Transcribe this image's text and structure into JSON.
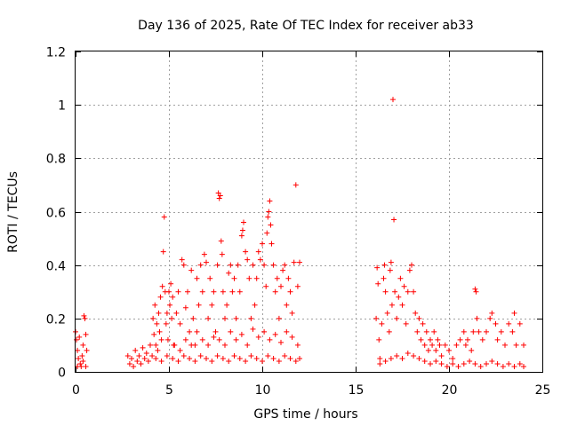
{
  "chart_data": {
    "type": "scatter",
    "title": "Day 136 of 2025, Rate Of TEC Index for receiver ab33",
    "xlabel": "GPS time / hours",
    "ylabel": "ROTI / TECUs",
    "xlim": [
      0,
      25
    ],
    "ylim": [
      0,
      1.2
    ],
    "xticks": [
      0,
      5,
      10,
      15,
      20,
      25
    ],
    "yticks": [
      0,
      0.2,
      0.4,
      0.6,
      0.8,
      1,
      1.2
    ],
    "xtick_labels": [
      "0",
      "5",
      "10",
      "15",
      "20",
      "25"
    ],
    "ytick_labels": [
      "0",
      "0.2",
      "0.4",
      "0.6",
      "0.8",
      "1",
      "1.2"
    ],
    "grid": true,
    "marker": "+",
    "color": "#ff0000",
    "series": [
      {
        "name": "ROTI",
        "points": [
          [
            0.0,
            0.15
          ],
          [
            0.05,
            0.12
          ],
          [
            0.1,
            0.08
          ],
          [
            0.15,
            0.05
          ],
          [
            0.2,
            0.13
          ],
          [
            0.25,
            0.03
          ],
          [
            0.3,
            0.02
          ],
          [
            0.35,
            0.06
          ],
          [
            0.4,
            0.1
          ],
          [
            0.45,
            0.21
          ],
          [
            0.5,
            0.2
          ],
          [
            0.55,
            0.14
          ],
          [
            0.6,
            0.08
          ],
          [
            0.1,
            0.02
          ],
          [
            0.4,
            0.04
          ],
          [
            0.55,
            0.02
          ],
          [
            2.8,
            0.06
          ],
          [
            2.9,
            0.03
          ],
          [
            3.0,
            0.05
          ],
          [
            3.1,
            0.02
          ],
          [
            3.2,
            0.08
          ],
          [
            3.3,
            0.04
          ],
          [
            3.4,
            0.06
          ],
          [
            3.5,
            0.03
          ],
          [
            3.6,
            0.09
          ],
          [
            3.7,
            0.05
          ],
          [
            3.8,
            0.07
          ],
          [
            3.9,
            0.04
          ],
          [
            4.0,
            0.1
          ],
          [
            4.1,
            0.06
          ],
          [
            4.15,
            0.2
          ],
          [
            4.2,
            0.14
          ],
          [
            4.25,
            0.25
          ],
          [
            4.3,
            0.1
          ],
          [
            4.35,
            0.18
          ],
          [
            4.4,
            0.08
          ],
          [
            4.45,
            0.22
          ],
          [
            4.5,
            0.15
          ],
          [
            4.55,
            0.28
          ],
          [
            4.6,
            0.12
          ],
          [
            4.65,
            0.32
          ],
          [
            4.7,
            0.45
          ],
          [
            4.75,
            0.58
          ],
          [
            4.8,
            0.3
          ],
          [
            4.85,
            0.18
          ],
          [
            4.9,
            0.22
          ],
          [
            4.95,
            0.12
          ],
          [
            5.0,
            0.3
          ],
          [
            5.05,
            0.25
          ],
          [
            5.1,
            0.33
          ],
          [
            5.15,
            0.2
          ],
          [
            5.2,
            0.28
          ],
          [
            5.25,
            0.1
          ],
          [
            5.4,
            0.22
          ],
          [
            5.5,
            0.3
          ],
          [
            5.6,
            0.18
          ],
          [
            5.7,
            0.42
          ],
          [
            5.8,
            0.4
          ],
          [
            5.9,
            0.24
          ],
          [
            6.0,
            0.3
          ],
          [
            6.1,
            0.15
          ],
          [
            6.2,
            0.38
          ],
          [
            6.3,
            0.2
          ],
          [
            6.4,
            0.1
          ],
          [
            6.5,
            0.35
          ],
          [
            6.6,
            0.25
          ],
          [
            6.7,
            0.4
          ],
          [
            6.8,
            0.3
          ],
          [
            6.9,
            0.44
          ],
          [
            7.0,
            0.41
          ],
          [
            7.1,
            0.2
          ],
          [
            7.2,
            0.35
          ],
          [
            7.3,
            0.25
          ],
          [
            7.4,
            0.3
          ],
          [
            7.5,
            0.15
          ],
          [
            7.6,
            0.4
          ],
          [
            7.65,
            0.67
          ],
          [
            7.7,
            0.65
          ],
          [
            7.75,
            0.66
          ],
          [
            7.8,
            0.49
          ],
          [
            7.85,
            0.44
          ],
          [
            7.9,
            0.3
          ],
          [
            8.0,
            0.2
          ],
          [
            8.1,
            0.25
          ],
          [
            8.2,
            0.37
          ],
          [
            8.3,
            0.4
          ],
          [
            8.4,
            0.3
          ],
          [
            8.5,
            0.35
          ],
          [
            8.6,
            0.2
          ],
          [
            8.7,
            0.4
          ],
          [
            8.8,
            0.3
          ],
          [
            8.9,
            0.51
          ],
          [
            8.95,
            0.53
          ],
          [
            9.0,
            0.56
          ],
          [
            9.1,
            0.45
          ],
          [
            9.2,
            0.42
          ],
          [
            9.3,
            0.35
          ],
          [
            9.4,
            0.2
          ],
          [
            9.5,
            0.4
          ],
          [
            9.6,
            0.25
          ],
          [
            9.7,
            0.35
          ],
          [
            9.8,
            0.45
          ],
          [
            9.9,
            0.42
          ],
          [
            10.0,
            0.48
          ],
          [
            10.1,
            0.4
          ],
          [
            10.2,
            0.32
          ],
          [
            10.25,
            0.52
          ],
          [
            10.3,
            0.58
          ],
          [
            10.35,
            0.6
          ],
          [
            10.4,
            0.64
          ],
          [
            10.45,
            0.55
          ],
          [
            10.5,
            0.48
          ],
          [
            10.6,
            0.4
          ],
          [
            10.7,
            0.3
          ],
          [
            10.8,
            0.35
          ],
          [
            10.9,
            0.2
          ],
          [
            11.0,
            0.32
          ],
          [
            11.1,
            0.38
          ],
          [
            11.2,
            0.4
          ],
          [
            11.3,
            0.25
          ],
          [
            11.4,
            0.35
          ],
          [
            11.5,
            0.3
          ],
          [
            11.6,
            0.22
          ],
          [
            11.7,
            0.41
          ],
          [
            11.8,
            0.7
          ],
          [
            11.9,
            0.32
          ],
          [
            12.0,
            0.41
          ],
          [
            5.3,
            0.1
          ],
          [
            5.6,
            0.08
          ],
          [
            5.9,
            0.12
          ],
          [
            6.2,
            0.1
          ],
          [
            6.5,
            0.15
          ],
          [
            6.8,
            0.12
          ],
          [
            7.1,
            0.1
          ],
          [
            7.4,
            0.13
          ],
          [
            7.7,
            0.12
          ],
          [
            8.0,
            0.1
          ],
          [
            8.3,
            0.15
          ],
          [
            8.6,
            0.12
          ],
          [
            8.9,
            0.14
          ],
          [
            9.2,
            0.1
          ],
          [
            9.5,
            0.16
          ],
          [
            9.8,
            0.13
          ],
          [
            10.1,
            0.15
          ],
          [
            10.4,
            0.12
          ],
          [
            10.7,
            0.14
          ],
          [
            11.0,
            0.11
          ],
          [
            11.3,
            0.15
          ],
          [
            11.6,
            0.13
          ],
          [
            11.9,
            0.1
          ],
          [
            4.3,
            0.05
          ],
          [
            4.6,
            0.04
          ],
          [
            4.9,
            0.06
          ],
          [
            5.2,
            0.05
          ],
          [
            5.5,
            0.04
          ],
          [
            5.8,
            0.06
          ],
          [
            6.1,
            0.05
          ],
          [
            6.4,
            0.04
          ],
          [
            6.7,
            0.06
          ],
          [
            7.0,
            0.05
          ],
          [
            7.3,
            0.04
          ],
          [
            7.6,
            0.06
          ],
          [
            7.9,
            0.05
          ],
          [
            8.2,
            0.04
          ],
          [
            8.5,
            0.06
          ],
          [
            8.8,
            0.05
          ],
          [
            9.1,
            0.04
          ],
          [
            9.4,
            0.06
          ],
          [
            9.7,
            0.05
          ],
          [
            10.0,
            0.04
          ],
          [
            10.3,
            0.06
          ],
          [
            10.6,
            0.05
          ],
          [
            10.9,
            0.04
          ],
          [
            11.2,
            0.06
          ],
          [
            11.5,
            0.05
          ],
          [
            11.8,
            0.04
          ],
          [
            12.0,
            0.05
          ],
          [
            16.1,
            0.2
          ],
          [
            16.15,
            0.39
          ],
          [
            16.2,
            0.33
          ],
          [
            16.25,
            0.12
          ],
          [
            16.3,
            0.05
          ],
          [
            16.4,
            0.18
          ],
          [
            16.5,
            0.35
          ],
          [
            16.55,
            0.4
          ],
          [
            16.6,
            0.3
          ],
          [
            16.7,
            0.22
          ],
          [
            16.8,
            0.15
          ],
          [
            16.85,
            0.38
          ],
          [
            16.9,
            0.41
          ],
          [
            16.95,
            0.25
          ],
          [
            17.0,
            1.02
          ],
          [
            17.05,
            0.57
          ],
          [
            17.1,
            0.3
          ],
          [
            17.2,
            0.2
          ],
          [
            17.3,
            0.28
          ],
          [
            17.4,
            0.35
          ],
          [
            17.5,
            0.25
          ],
          [
            17.6,
            0.32
          ],
          [
            17.7,
            0.18
          ],
          [
            17.8,
            0.3
          ],
          [
            17.9,
            0.38
          ],
          [
            18.0,
            0.4
          ],
          [
            18.1,
            0.3
          ],
          [
            18.2,
            0.22
          ],
          [
            18.3,
            0.15
          ],
          [
            18.4,
            0.2
          ],
          [
            18.5,
            0.12
          ],
          [
            18.6,
            0.18
          ],
          [
            18.7,
            0.1
          ],
          [
            18.8,
            0.15
          ],
          [
            18.9,
            0.08
          ],
          [
            19.0,
            0.12
          ],
          [
            19.1,
            0.1
          ],
          [
            19.2,
            0.15
          ],
          [
            19.3,
            0.08
          ],
          [
            19.4,
            0.12
          ],
          [
            19.5,
            0.1
          ],
          [
            19.6,
            0.06
          ],
          [
            19.8,
            0.1
          ],
          [
            20.0,
            0.08
          ],
          [
            20.2,
            0.05
          ],
          [
            20.4,
            0.1
          ],
          [
            20.6,
            0.12
          ],
          [
            20.8,
            0.15
          ],
          [
            20.9,
            0.1
          ],
          [
            21.0,
            0.12
          ],
          [
            21.2,
            0.08
          ],
          [
            21.3,
            0.15
          ],
          [
            21.4,
            0.31
          ],
          [
            21.45,
            0.3
          ],
          [
            21.5,
            0.2
          ],
          [
            21.6,
            0.15
          ],
          [
            21.8,
            0.12
          ],
          [
            22.0,
            0.15
          ],
          [
            22.2,
            0.2
          ],
          [
            22.3,
            0.22
          ],
          [
            22.5,
            0.18
          ],
          [
            22.6,
            0.12
          ],
          [
            22.8,
            0.15
          ],
          [
            23.0,
            0.1
          ],
          [
            23.2,
            0.18
          ],
          [
            23.4,
            0.15
          ],
          [
            23.5,
            0.22
          ],
          [
            23.6,
            0.1
          ],
          [
            23.8,
            0.18
          ],
          [
            24.0,
            0.1
          ],
          [
            16.3,
            0.03
          ],
          [
            16.6,
            0.04
          ],
          [
            16.9,
            0.05
          ],
          [
            17.2,
            0.06
          ],
          [
            17.5,
            0.05
          ],
          [
            17.8,
            0.07
          ],
          [
            18.1,
            0.06
          ],
          [
            18.4,
            0.05
          ],
          [
            18.7,
            0.04
          ],
          [
            19.0,
            0.03
          ],
          [
            19.3,
            0.04
          ],
          [
            19.6,
            0.03
          ],
          [
            19.9,
            0.02
          ],
          [
            20.2,
            0.03
          ],
          [
            20.5,
            0.02
          ],
          [
            20.8,
            0.03
          ],
          [
            21.1,
            0.04
          ],
          [
            21.4,
            0.03
          ],
          [
            21.7,
            0.02
          ],
          [
            22.0,
            0.03
          ],
          [
            22.3,
            0.04
          ],
          [
            22.6,
            0.03
          ],
          [
            22.9,
            0.02
          ],
          [
            23.2,
            0.03
          ],
          [
            23.5,
            0.02
          ],
          [
            23.8,
            0.03
          ],
          [
            24.0,
            0.02
          ]
        ]
      }
    ]
  }
}
